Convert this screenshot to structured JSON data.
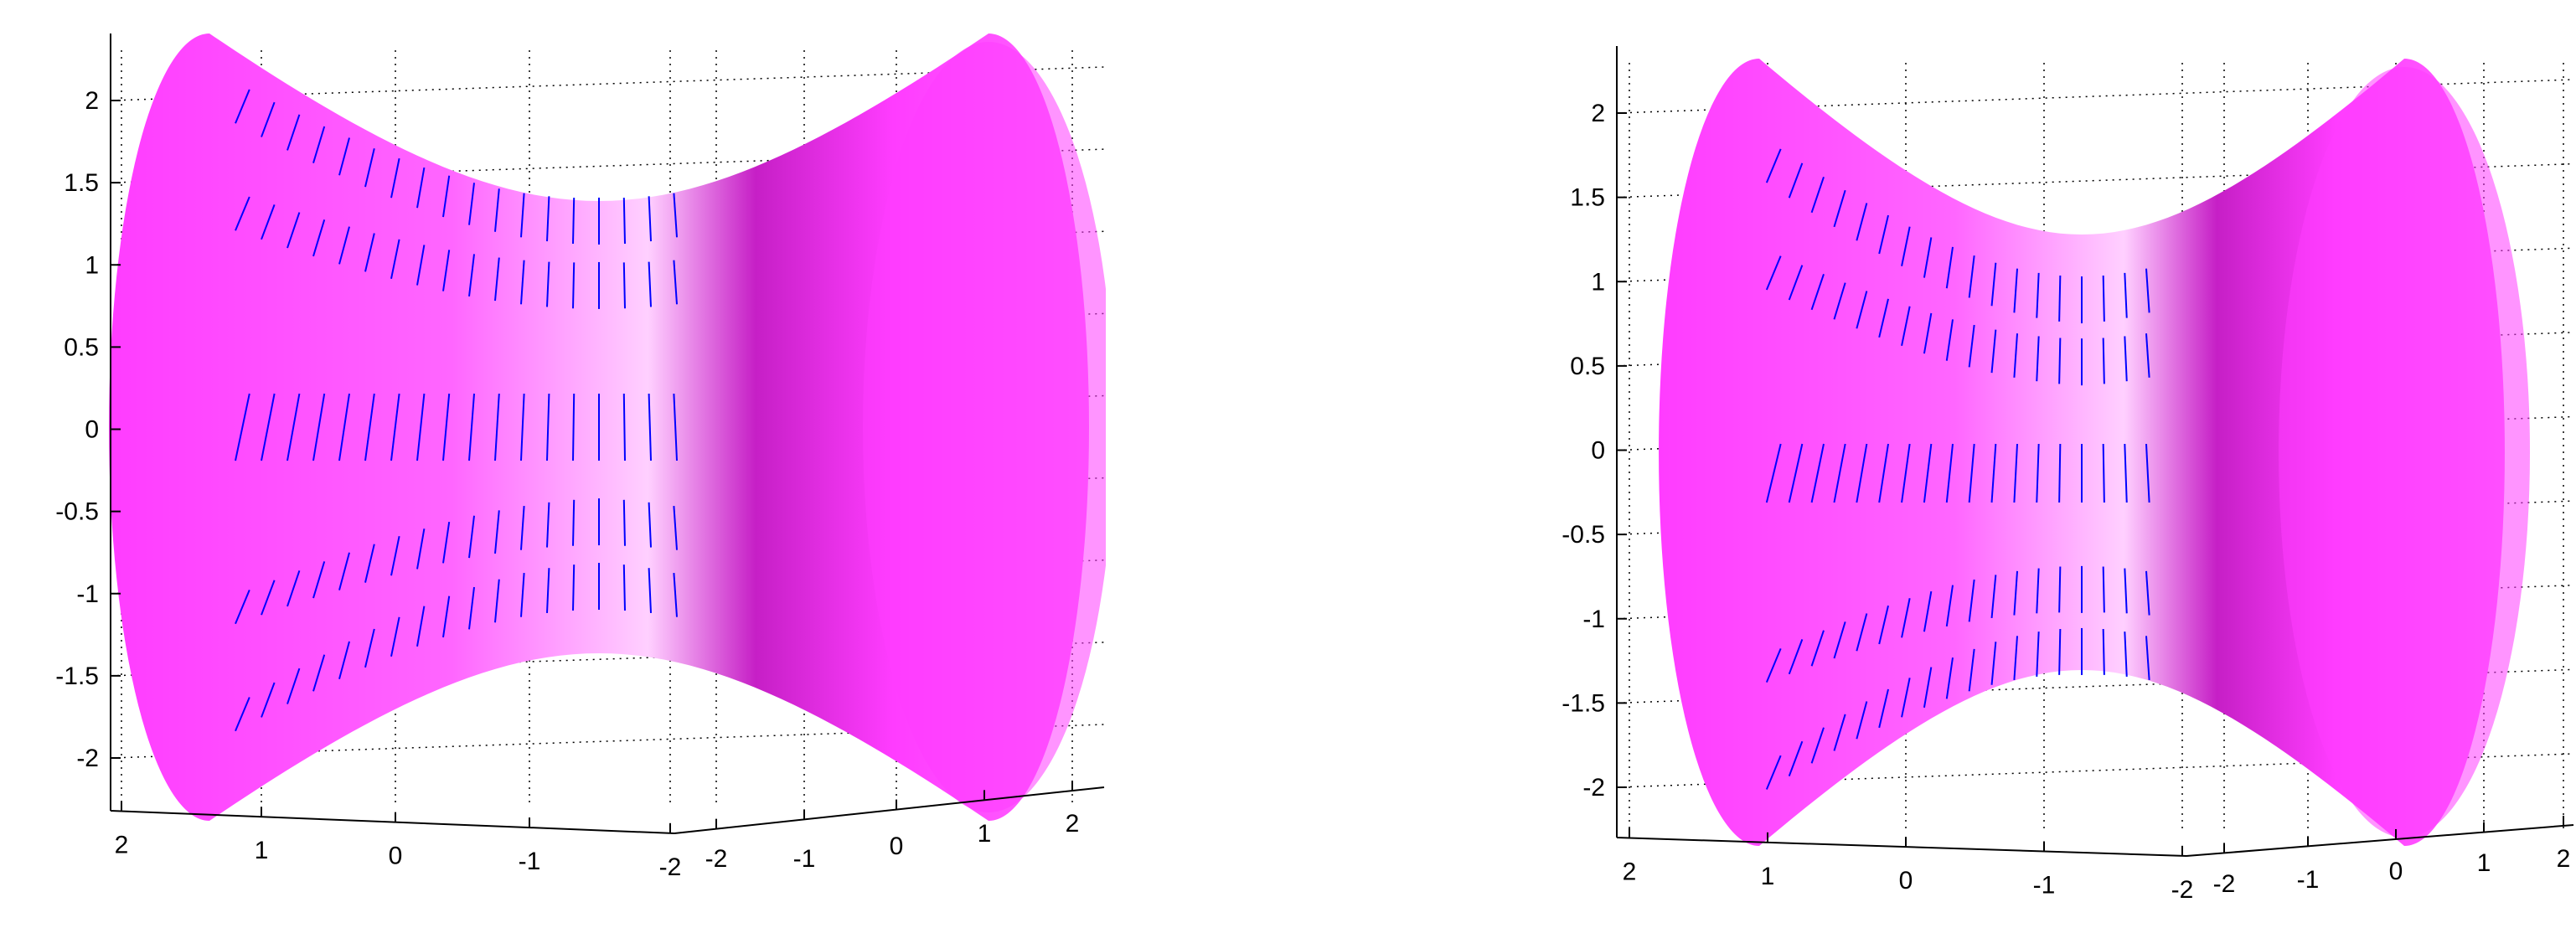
{
  "colors": {
    "surface_light": "#ff66ff",
    "surface_mid": "#ff3cff",
    "surface_dark": "#c61fc6",
    "arrows": "#0000ff",
    "axis": "#000000",
    "grid": "#000000"
  },
  "chart_data": [
    {
      "type": "quiver3",
      "title": "",
      "surface": "hyperboloid of one sheet (waist radius ~1.0, end radius ~2.3), axis along horizontal direction",
      "z_ticks": [
        "2",
        "1.5",
        "1",
        "0.5",
        "0",
        "-0.5",
        "-1",
        "-1.5",
        "-2"
      ],
      "x_ticks": [
        "2",
        "1",
        "0",
        "-1",
        "-2"
      ],
      "y_ticks": [
        "-2",
        "-1",
        "0",
        "1",
        "2"
      ],
      "zlim": [
        -2.3,
        2.3
      ],
      "grid": true,
      "normals_direction": "outward (upper arrows point up, lower arrows point up-right)"
    },
    {
      "type": "quiver3",
      "title": "",
      "surface": "hyperboloid of one sheet (waist radius ~1.0, end radius ~2.3), axis along horizontal direction",
      "z_ticks": [
        "2",
        "1.5",
        "1",
        "0.5",
        "0",
        "-0.5",
        "-1",
        "-1.5",
        "-2"
      ],
      "x_ticks": [
        "2",
        "1",
        "0",
        "-1",
        "-2"
      ],
      "y_ticks": [
        "-2",
        "-1",
        "0",
        "1",
        "2"
      ],
      "zlim": [
        -2.3,
        2.3
      ],
      "grid": true,
      "normals_direction": "inward (upper arrows point down, lower arrows point down)"
    }
  ]
}
